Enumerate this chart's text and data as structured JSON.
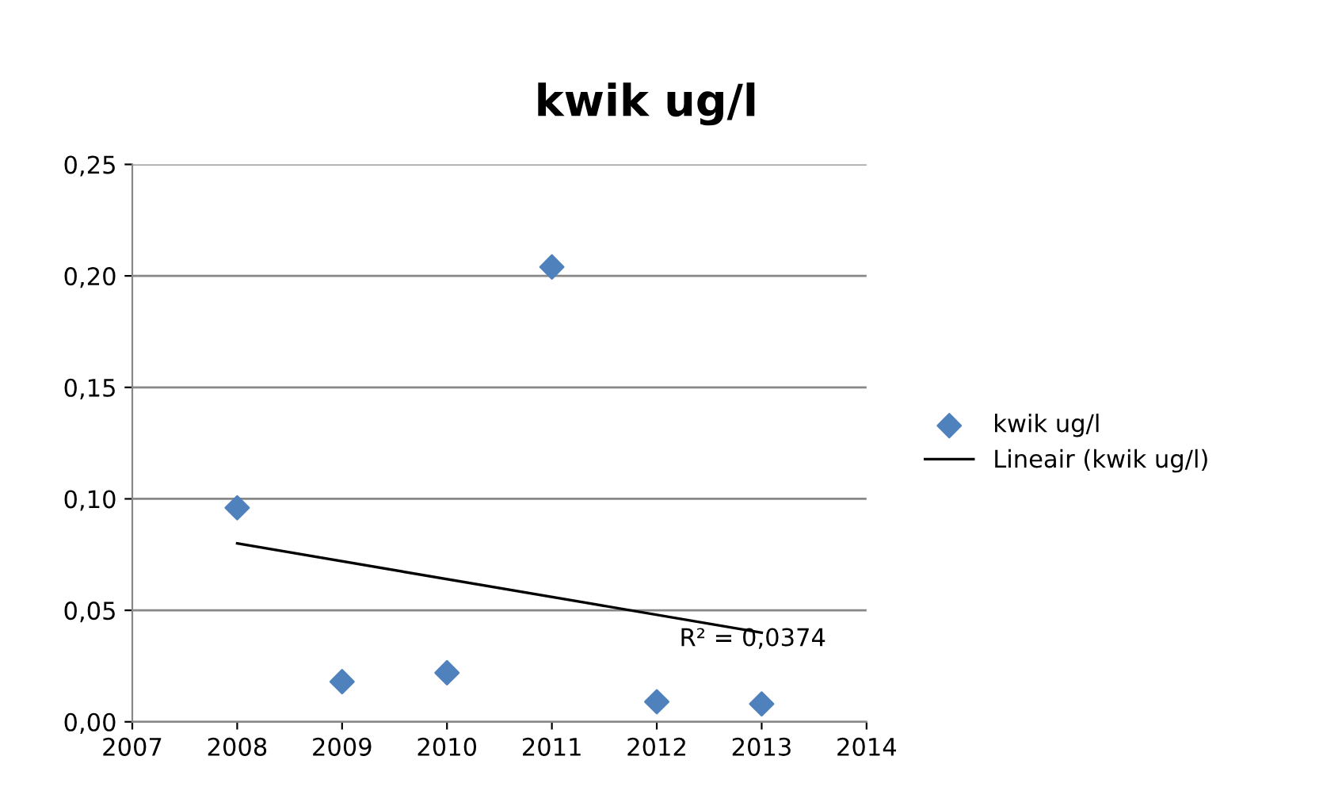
{
  "chart_data": {
    "type": "scatter",
    "title": "kwik ug/l",
    "series": [
      {
        "name": "kwik ug/l",
        "color": "#4f81bd",
        "marker": "diamond",
        "x": [
          2008,
          2009,
          2010,
          2011,
          2012,
          2013
        ],
        "values": [
          0.096,
          0.018,
          0.022,
          0.204,
          0.009,
          0.008
        ]
      },
      {
        "name": "Lineair (kwik ug/l)",
        "type": "line",
        "color": "#000000",
        "marker": "none",
        "line_style": "solid",
        "x": [
          2008,
          2013
        ],
        "values": [
          0.08,
          0.04
        ]
      }
    ],
    "annotations": [
      "R² = 0,0374"
    ],
    "xlim": [
      2007,
      2014
    ],
    "xticks": [
      2007,
      2008,
      2009,
      2010,
      2011,
      2012,
      2013,
      2014
    ],
    "ylim": [
      0,
      0.25
    ],
    "yticks": [
      {
        "value": 0,
        "label": "0,00"
      },
      {
        "value": 0.05,
        "label": "0,05"
      },
      {
        "value": 0.1,
        "label": "0,10"
      },
      {
        "value": 0.15,
        "label": "0,15"
      },
      {
        "value": 0.2,
        "label": "0,20"
      },
      {
        "value": 0.25,
        "label": "0,25"
      }
    ],
    "grid": "y",
    "legend": "right"
  }
}
